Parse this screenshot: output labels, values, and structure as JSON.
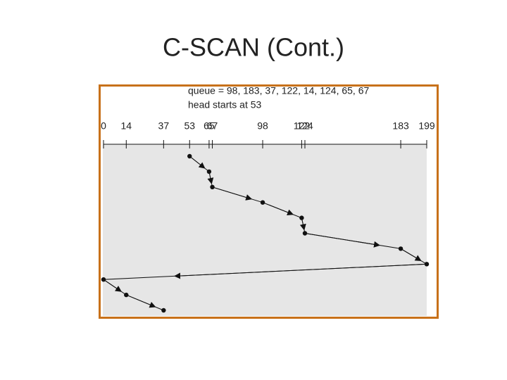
{
  "chart_data": {
    "type": "line",
    "title": "C-SCAN (Cont.)",
    "annotations": [
      "queue = 98, 183, 37, 122, 14, 124, 65, 67",
      "head starts at 53"
    ],
    "x": [
      53,
      65,
      67,
      98,
      122,
      124,
      183,
      199,
      0,
      14,
      37
    ],
    "xlim": [
      0,
      199
    ],
    "xticks": [
      0,
      14,
      37,
      53,
      65,
      67,
      98,
      122,
      124,
      183,
      199
    ],
    "color": "#111111"
  }
}
